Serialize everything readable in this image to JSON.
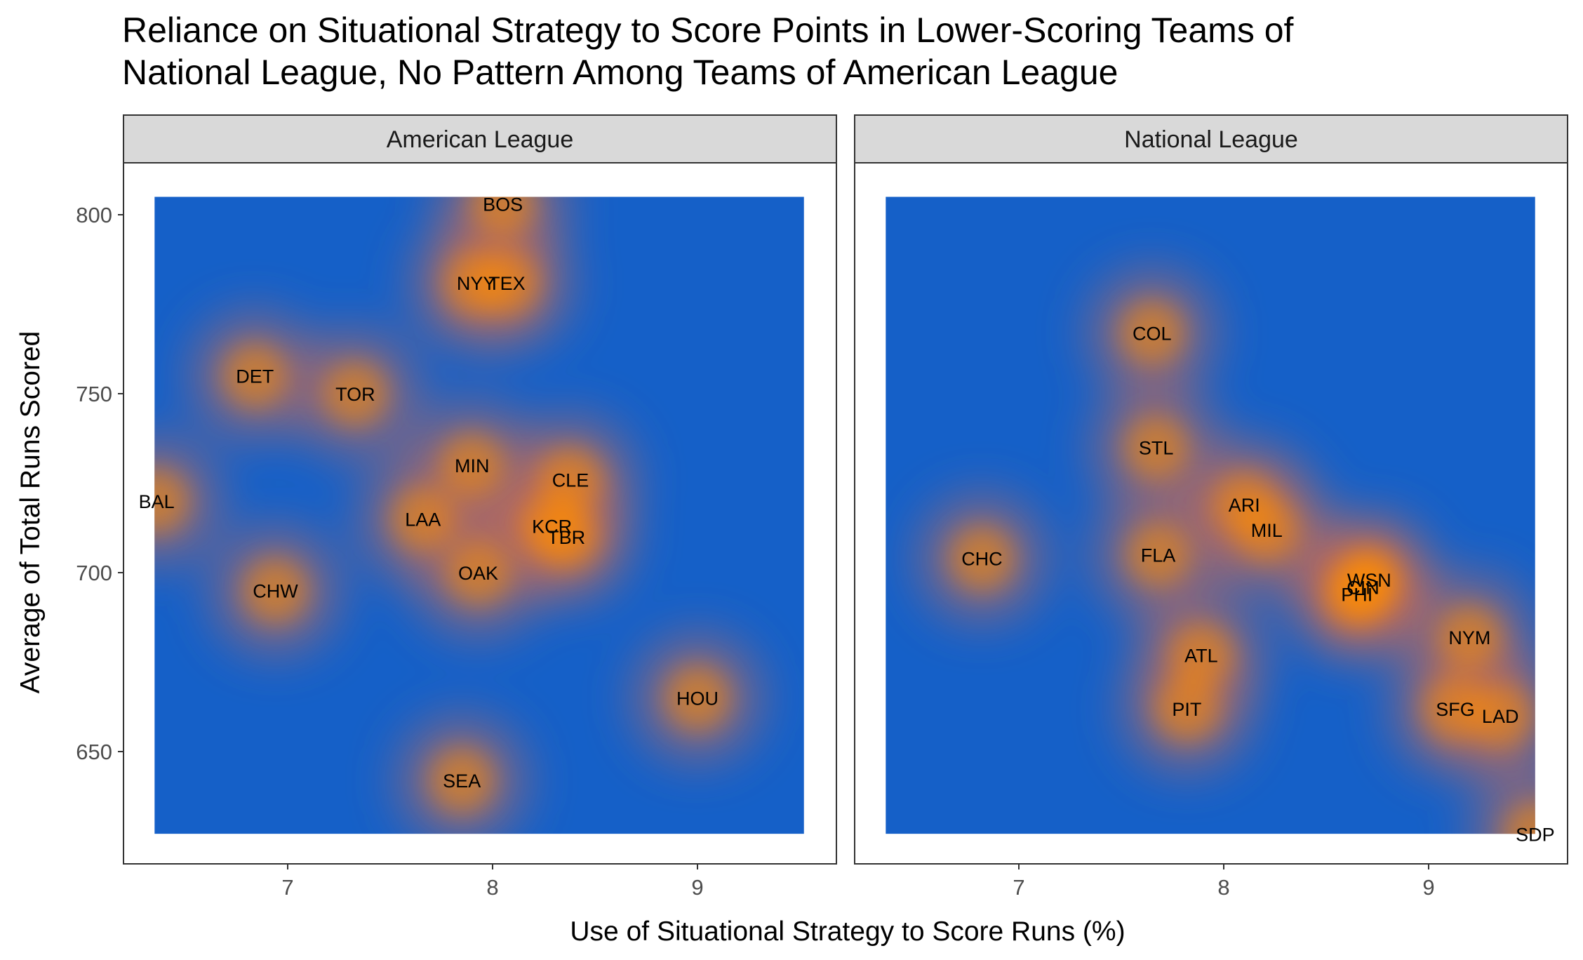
{
  "chart_data": {
    "type": "scatter",
    "subtype": "density-heatmap with text labels, faceted",
    "title": "Reliance on Situational Strategy to Score Points in Lower-Scoring Teams of National League, No Pattern Among Teams of American League",
    "title_lines": [
      "Reliance on Situational Strategy to Score Points in Lower-Scoring Teams of",
      "National League, No Pattern Among Teams of American League"
    ],
    "xlabel": "Use of Situational Strategy to Score Runs (%)",
    "ylabel": "Average of Total Runs Scored",
    "xlim": [
      6.2,
      9.7
    ],
    "ylim": [
      620,
      818
    ],
    "x_ticks": [
      7,
      8,
      9
    ],
    "y_ticks": [
      650,
      700,
      750,
      800
    ],
    "density_range": {
      "x": [
        6.35,
        9.52
      ],
      "y": [
        627,
        805
      ]
    },
    "colors": {
      "low": "#1560c8",
      "mid": "#ff8c00",
      "high": "#f2e8d8"
    },
    "grid": false,
    "legend": "none",
    "facets": [
      {
        "name": "American League",
        "teams": [
          {
            "team": "BOS",
            "x": 8.05,
            "y": 803
          },
          {
            "team": "NYY",
            "x": 7.92,
            "y": 781
          },
          {
            "team": "TEX",
            "x": 8.07,
            "y": 781
          },
          {
            "team": "DET",
            "x": 6.84,
            "y": 755
          },
          {
            "team": "TOR",
            "x": 7.33,
            "y": 750
          },
          {
            "team": "MIN",
            "x": 7.9,
            "y": 730
          },
          {
            "team": "CLE",
            "x": 8.38,
            "y": 726
          },
          {
            "team": "BAL",
            "x": 6.36,
            "y": 720
          },
          {
            "team": "LAA",
            "x": 7.66,
            "y": 715
          },
          {
            "team": "KCR",
            "x": 8.29,
            "y": 713
          },
          {
            "team": "TBR",
            "x": 8.36,
            "y": 710
          },
          {
            "team": "OAK",
            "x": 7.93,
            "y": 700
          },
          {
            "team": "CHW",
            "x": 6.94,
            "y": 695
          },
          {
            "team": "HOU",
            "x": 9.0,
            "y": 665
          },
          {
            "team": "SEA",
            "x": 7.85,
            "y": 642
          }
        ]
      },
      {
        "name": "National League",
        "teams": [
          {
            "team": "COL",
            "x": 7.65,
            "y": 767
          },
          {
            "team": "STL",
            "x": 7.67,
            "y": 735
          },
          {
            "team": "ARI",
            "x": 8.1,
            "y": 719
          },
          {
            "team": "MIL",
            "x": 8.21,
            "y": 712
          },
          {
            "team": "CHC",
            "x": 6.82,
            "y": 704
          },
          {
            "team": "FLA",
            "x": 7.68,
            "y": 705
          },
          {
            "team": "WSN",
            "x": 8.71,
            "y": 698
          },
          {
            "team": "CIN",
            "x": 8.68,
            "y": 696
          },
          {
            "team": "PHI",
            "x": 8.65,
            "y": 694
          },
          {
            "team": "NYM",
            "x": 9.2,
            "y": 682
          },
          {
            "team": "ATL",
            "x": 7.89,
            "y": 677
          },
          {
            "team": "PIT",
            "x": 7.82,
            "y": 662
          },
          {
            "team": "SFG",
            "x": 9.13,
            "y": 662
          },
          {
            "team": "LAD",
            "x": 9.35,
            "y": 660
          },
          {
            "team": "SDP",
            "x": 9.52,
            "y": 627
          }
        ]
      }
    ]
  }
}
